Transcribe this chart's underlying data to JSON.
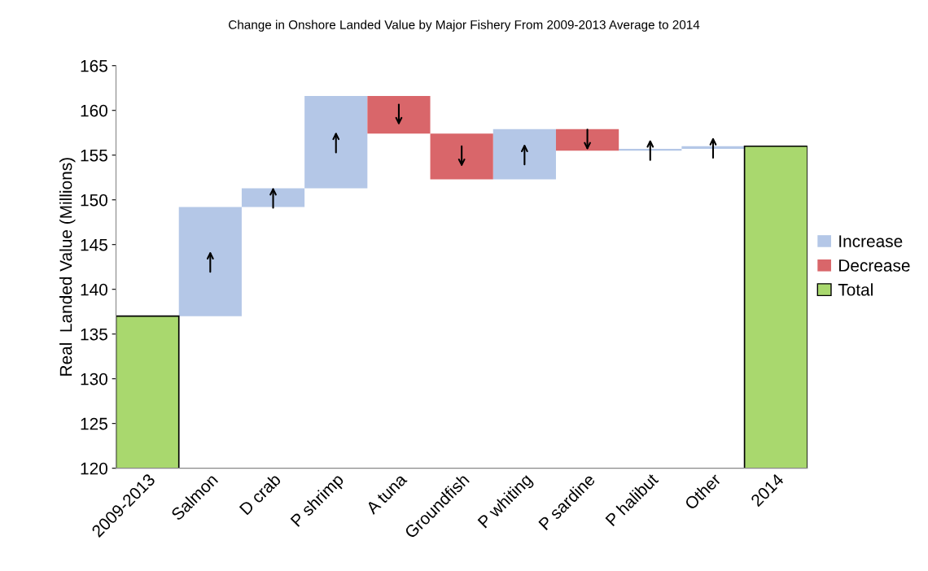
{
  "chart_data": {
    "type": "bar",
    "title": "Change in Onshore Landed Value by Major Fishery From 2009-2013 Average to 2014",
    "ylabel": "Real  Landed Value (Millions)",
    "categories": [
      "2009-2013",
      "Salmon",
      "D crab",
      "P shrimp",
      "A tuna",
      "Groundfish",
      "P whiting",
      "P sardine",
      "P halibut",
      "Other",
      "2014"
    ],
    "series": [
      {
        "name": "Increase",
        "color": "#b4c7e7",
        "values": [
          null,
          12.2,
          2.1,
          10.3,
          null,
          null,
          5.6,
          null,
          0.2,
          0.3,
          null
        ],
        "base": [
          null,
          137,
          149.2,
          151.3,
          null,
          null,
          152.3,
          null,
          155.5,
          155.7,
          null
        ]
      },
      {
        "name": "Decrease",
        "color": "#d9666a",
        "values": [
          null,
          null,
          null,
          null,
          -4.2,
          -5.1,
          null,
          -2.4,
          null,
          null,
          null
        ],
        "base": [
          null,
          null,
          null,
          null,
          161.6,
          157.4,
          null,
          157.9,
          null,
          null,
          null
        ]
      },
      {
        "name": "Total",
        "color": "#a9d86e",
        "values": [
          137,
          null,
          null,
          null,
          null,
          null,
          null,
          null,
          null,
          null,
          156
        ]
      }
    ],
    "ylim": [
      120,
      165
    ],
    "yticks": [
      120,
      125,
      130,
      135,
      140,
      145,
      150,
      155,
      160,
      165
    ],
    "grid": false,
    "legend": "right"
  }
}
